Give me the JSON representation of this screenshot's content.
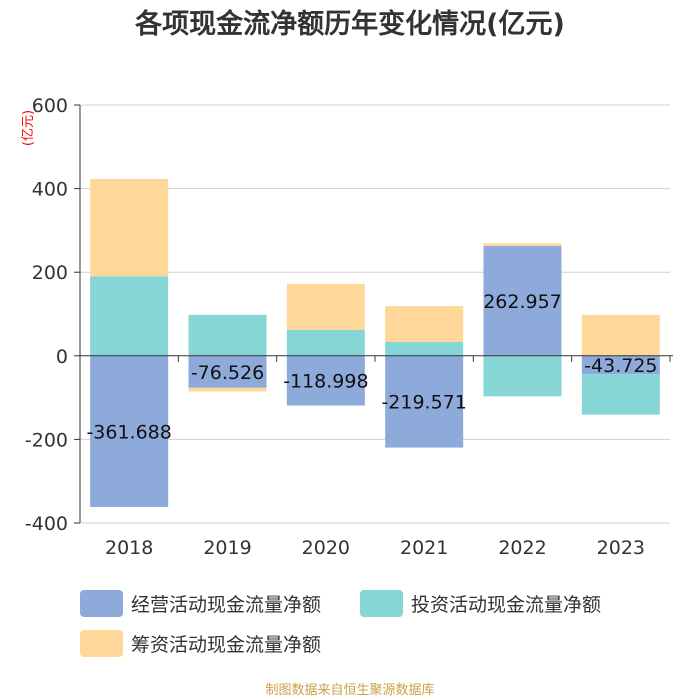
{
  "chart_data": {
    "type": "bar",
    "stacked": true,
    "title": "各项现金流净额历年变化情况(亿元)",
    "ylabel": "(亿元)",
    "xlabel": "",
    "ylim": [
      -400,
      600
    ],
    "yticks": [
      -400,
      -200,
      0,
      200,
      400,
      600
    ],
    "categories": [
      "2018",
      "2019",
      "2020",
      "2021",
      "2022",
      "2023"
    ],
    "series": [
      {
        "name": "经营活动现金流量净额",
        "color": "#8eaadb",
        "values": [
          -361.688,
          -76.526,
          -118.998,
          -219.571,
          262.957,
          -43.725
        ]
      },
      {
        "name": "投资活动现金流量净额",
        "color": "#86d6d6",
        "values": [
          190,
          98,
          62,
          33,
          -97,
          -97
        ]
      },
      {
        "name": "筹资活动现金流量净额",
        "color": "#ffd899",
        "values": [
          233,
          -9,
          110,
          86,
          6,
          98
        ]
      }
    ],
    "data_labels": [
      "-361.688",
      "-76.526",
      "-118.998",
      "-219.571",
      "262.957",
      "-43.725"
    ],
    "legend_position": "bottom",
    "grid": true
  },
  "source": "制图数据来自恒生聚源数据库"
}
